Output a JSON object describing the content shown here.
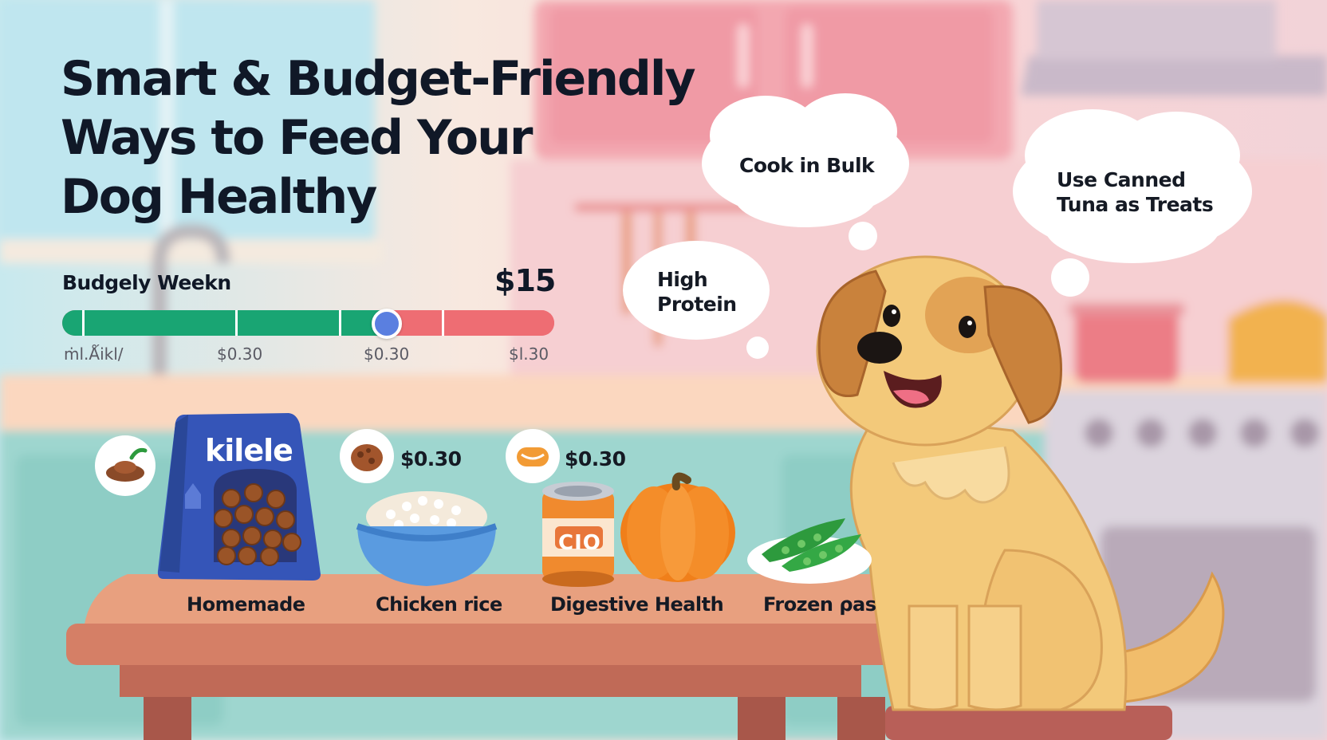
{
  "title": {
    "line1": "Smart & Budget-Friendly",
    "line2": "Ways to Feed Your",
    "line3": "Dog Healthy"
  },
  "budget": {
    "label": "Budgely Weekn",
    "amount": "$15",
    "progress_fraction": 0.655,
    "tick_labels": [
      "ṁl.Ǻikl/",
      "$0.30",
      "$0.30",
      "$l.30"
    ]
  },
  "thought_bubbles": {
    "bulk": "Cook in Bulk",
    "protein_line1": "High",
    "protein_line2": "Protein",
    "tuna_line1": "Use Canned",
    "tuna_line2": "Tuna as Treats"
  },
  "foods": {
    "bag_brand": "kilele",
    "can_label": "CIO",
    "prices": [
      "$0.30",
      "$0.30"
    ],
    "labels": [
      "Homemade",
      "Chicken rice",
      "Digestive Health",
      "Frozen ⍴as"
    ]
  },
  "colors": {
    "bar_good": "#19a573",
    "bar_over": "#ee6d73",
    "bar_knob": "#5a7fe0",
    "title_text": "#101827",
    "dog_fur": "#f3c97a",
    "dog_ears": "#c9823c",
    "bag_blue": "#3555b8",
    "pumpkin": "#f07f1a",
    "table": "#e79a78"
  },
  "icons": [
    "food-bowl-icon",
    "cookie-icon",
    "sausage-icon"
  ]
}
